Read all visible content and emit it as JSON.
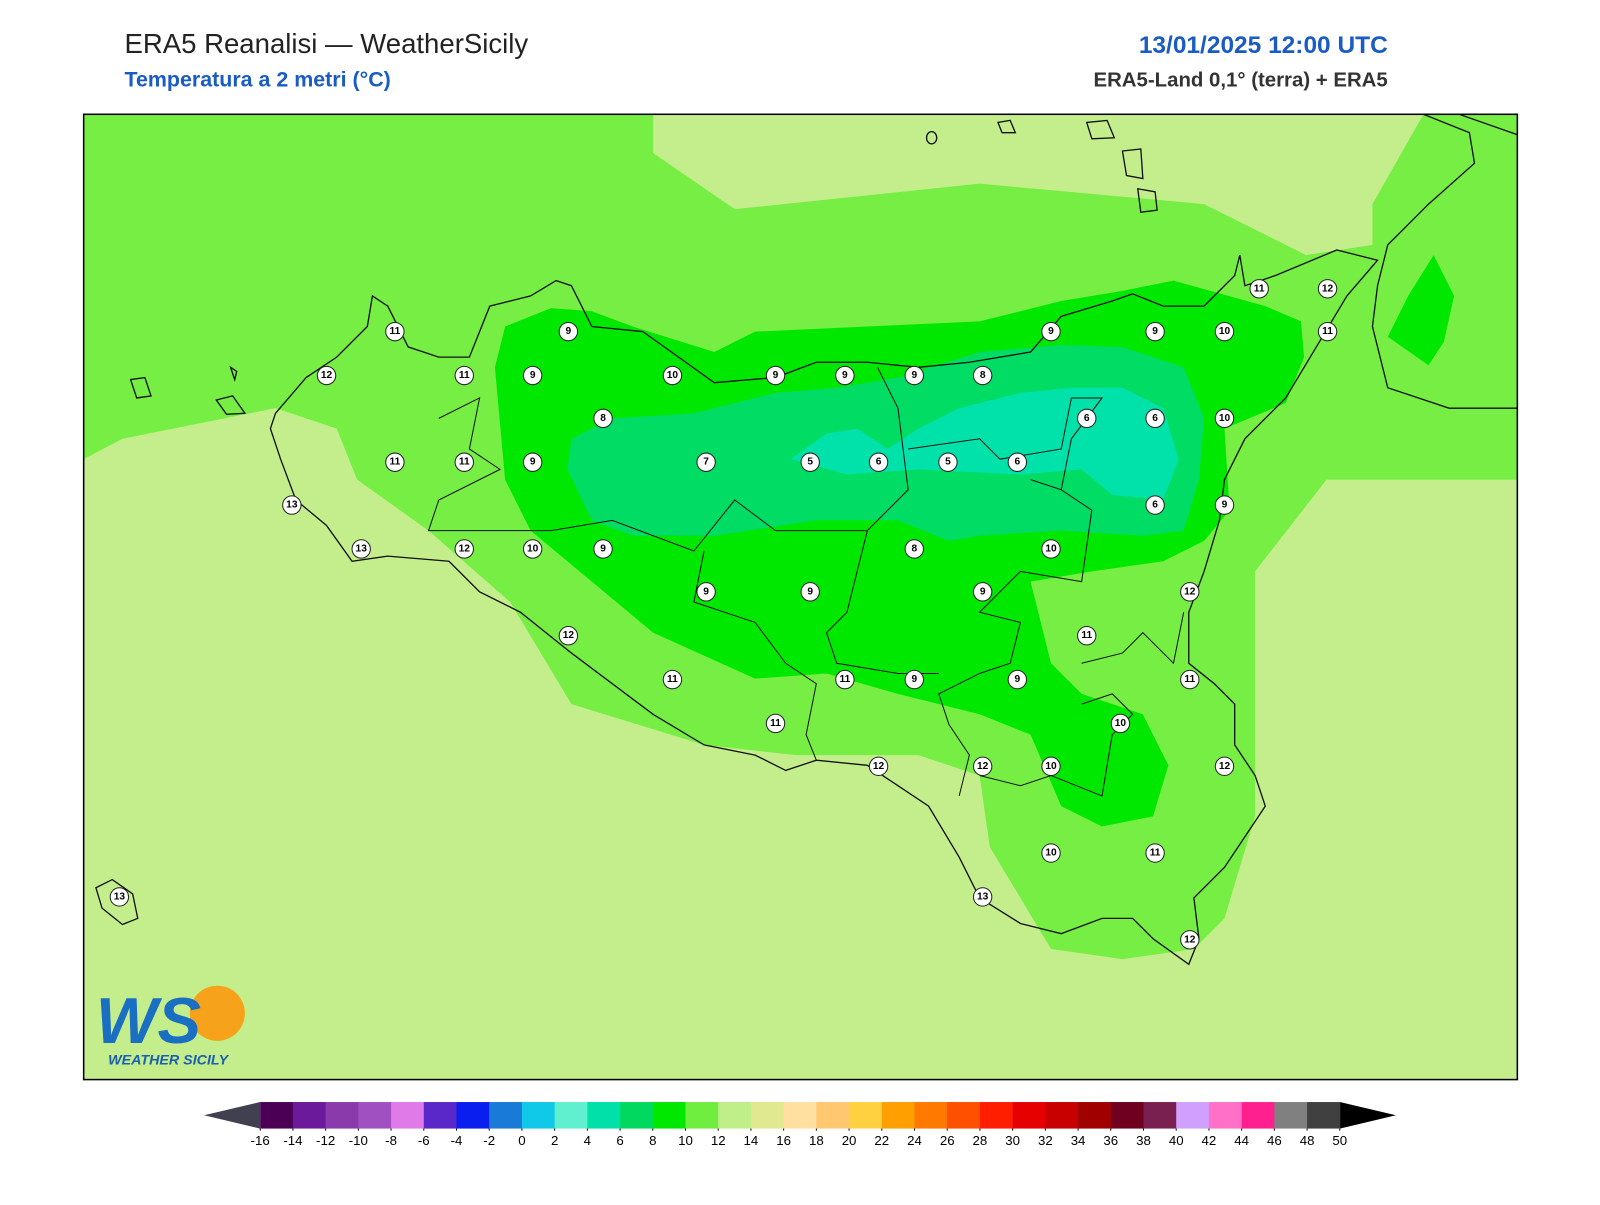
{
  "header": {
    "title": "ERA5 Reanalisi — WeatherSicily",
    "subtitle": "Temperatura a 2 metri (°C)",
    "datetime": "13/01/2025 12:00 UTC",
    "source": "ERA5-Land 0,1° (terra) + ERA5"
  },
  "stations": [
    11,
    9,
    9,
    9,
    10,
    11,
    12,
    11,
    12,
    11,
    9,
    10,
    9,
    9,
    9,
    8,
    8,
    6,
    6,
    10,
    11,
    11,
    9,
    7,
    5,
    6,
    5,
    6,
    13,
    6,
    9,
    13,
    12,
    10,
    9,
    8,
    10,
    9,
    9,
    9,
    12,
    12,
    11,
    11,
    11,
    9,
    9,
    11,
    11,
    10,
    12,
    12,
    10,
    12,
    10,
    11,
    13,
    13,
    12
  ],
  "colorbar": {
    "ticks": [
      -16,
      -14,
      -12,
      -10,
      -8,
      -6,
      -4,
      -2,
      0,
      2,
      4,
      6,
      8,
      10,
      12,
      14,
      16,
      18,
      20,
      22,
      24,
      26,
      28,
      30,
      32,
      34,
      36,
      38,
      40,
      42,
      44,
      46,
      48,
      50
    ],
    "colors": [
      "#4b0055",
      "#6a1a9a",
      "#8a3aaa",
      "#a050c0",
      "#e07ae8",
      "#5a28c8",
      "#0a1ef0",
      "#1a7ad8",
      "#10c8e8",
      "#60f0d0",
      "#00e0a8",
      "#00d860",
      "#00e800",
      "#70ee40",
      "#c0ee88",
      "#e0e890",
      "#ffe0a0",
      "#ffc870",
      "#ffd040",
      "#ffa000",
      "#ff7800",
      "#ff5000",
      "#ff1e00",
      "#e60000",
      "#c80000",
      "#a00000",
      "#700020",
      "#7a2050",
      "#d0a0ff",
      "#ff70c8",
      "#ff2090",
      "#808080",
      "#404040"
    ],
    "under_color": "#404050",
    "over_color": "#000000"
  },
  "logo": {
    "letters": "WS",
    "name": "WEATHER SICILY"
  }
}
